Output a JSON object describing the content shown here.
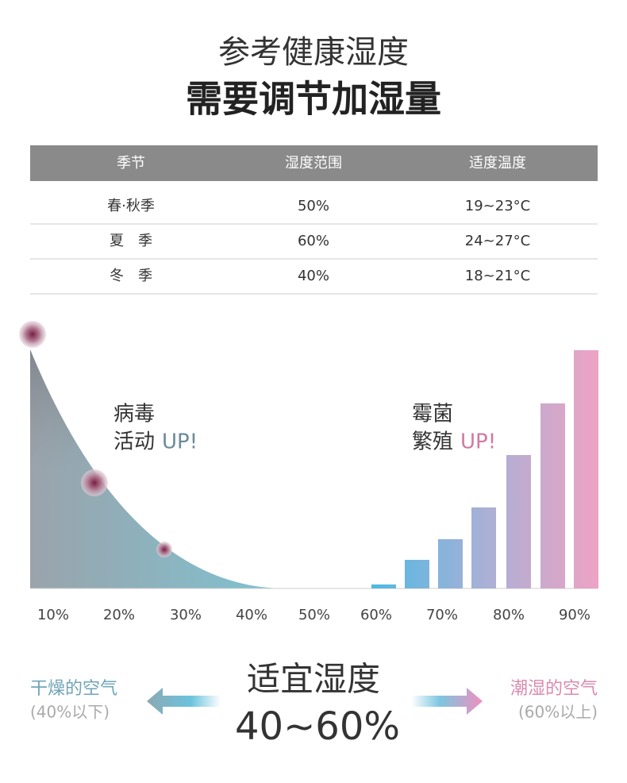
{
  "header": {
    "subtitle": "参考健康湿度",
    "title": "需要调节加湿量"
  },
  "table": {
    "columns": [
      "季节",
      "湿度范围",
      "适度温度"
    ],
    "rows": [
      [
        "春·秋季",
        "50%",
        "19~23°C"
      ],
      [
        "夏　季",
        "60%",
        "24~27°C"
      ],
      [
        "冬　季",
        "40%",
        "18~21°C"
      ]
    ]
  },
  "chart": {
    "virus": {
      "label": "病毒",
      "verb": "活动",
      "up": "UP!"
    },
    "mold": {
      "label": "霉菌",
      "verb": "繁殖",
      "up": "UP!"
    },
    "x_labels": [
      "10%",
      "20%",
      "30%",
      "40%",
      "50%",
      "60%",
      "70%",
      "80%",
      "90%"
    ]
  },
  "footer": {
    "title": "适宜湿度",
    "range": "40~60%",
    "dry": {
      "label": "干燥的空气",
      "note": "(40%以下)"
    },
    "humid": {
      "label": "潮湿的空气",
      "note": "(60%以上)"
    }
  }
}
